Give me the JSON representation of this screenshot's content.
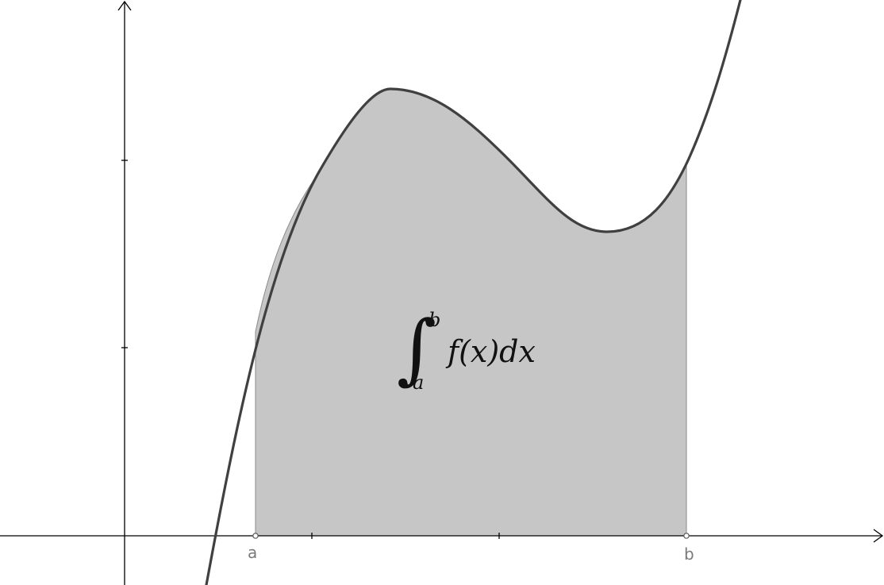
{
  "diagram": {
    "lower_limit_label": "a",
    "upper_limit_label": "b",
    "integral": {
      "sign": "∫",
      "upper": "b",
      "lower": "a",
      "integrand": "f(x)dx"
    }
  },
  "colors": {
    "curve": "#404040",
    "fill": "#c6c6c6",
    "axis": "#000000",
    "label": "#7a7a7a"
  }
}
